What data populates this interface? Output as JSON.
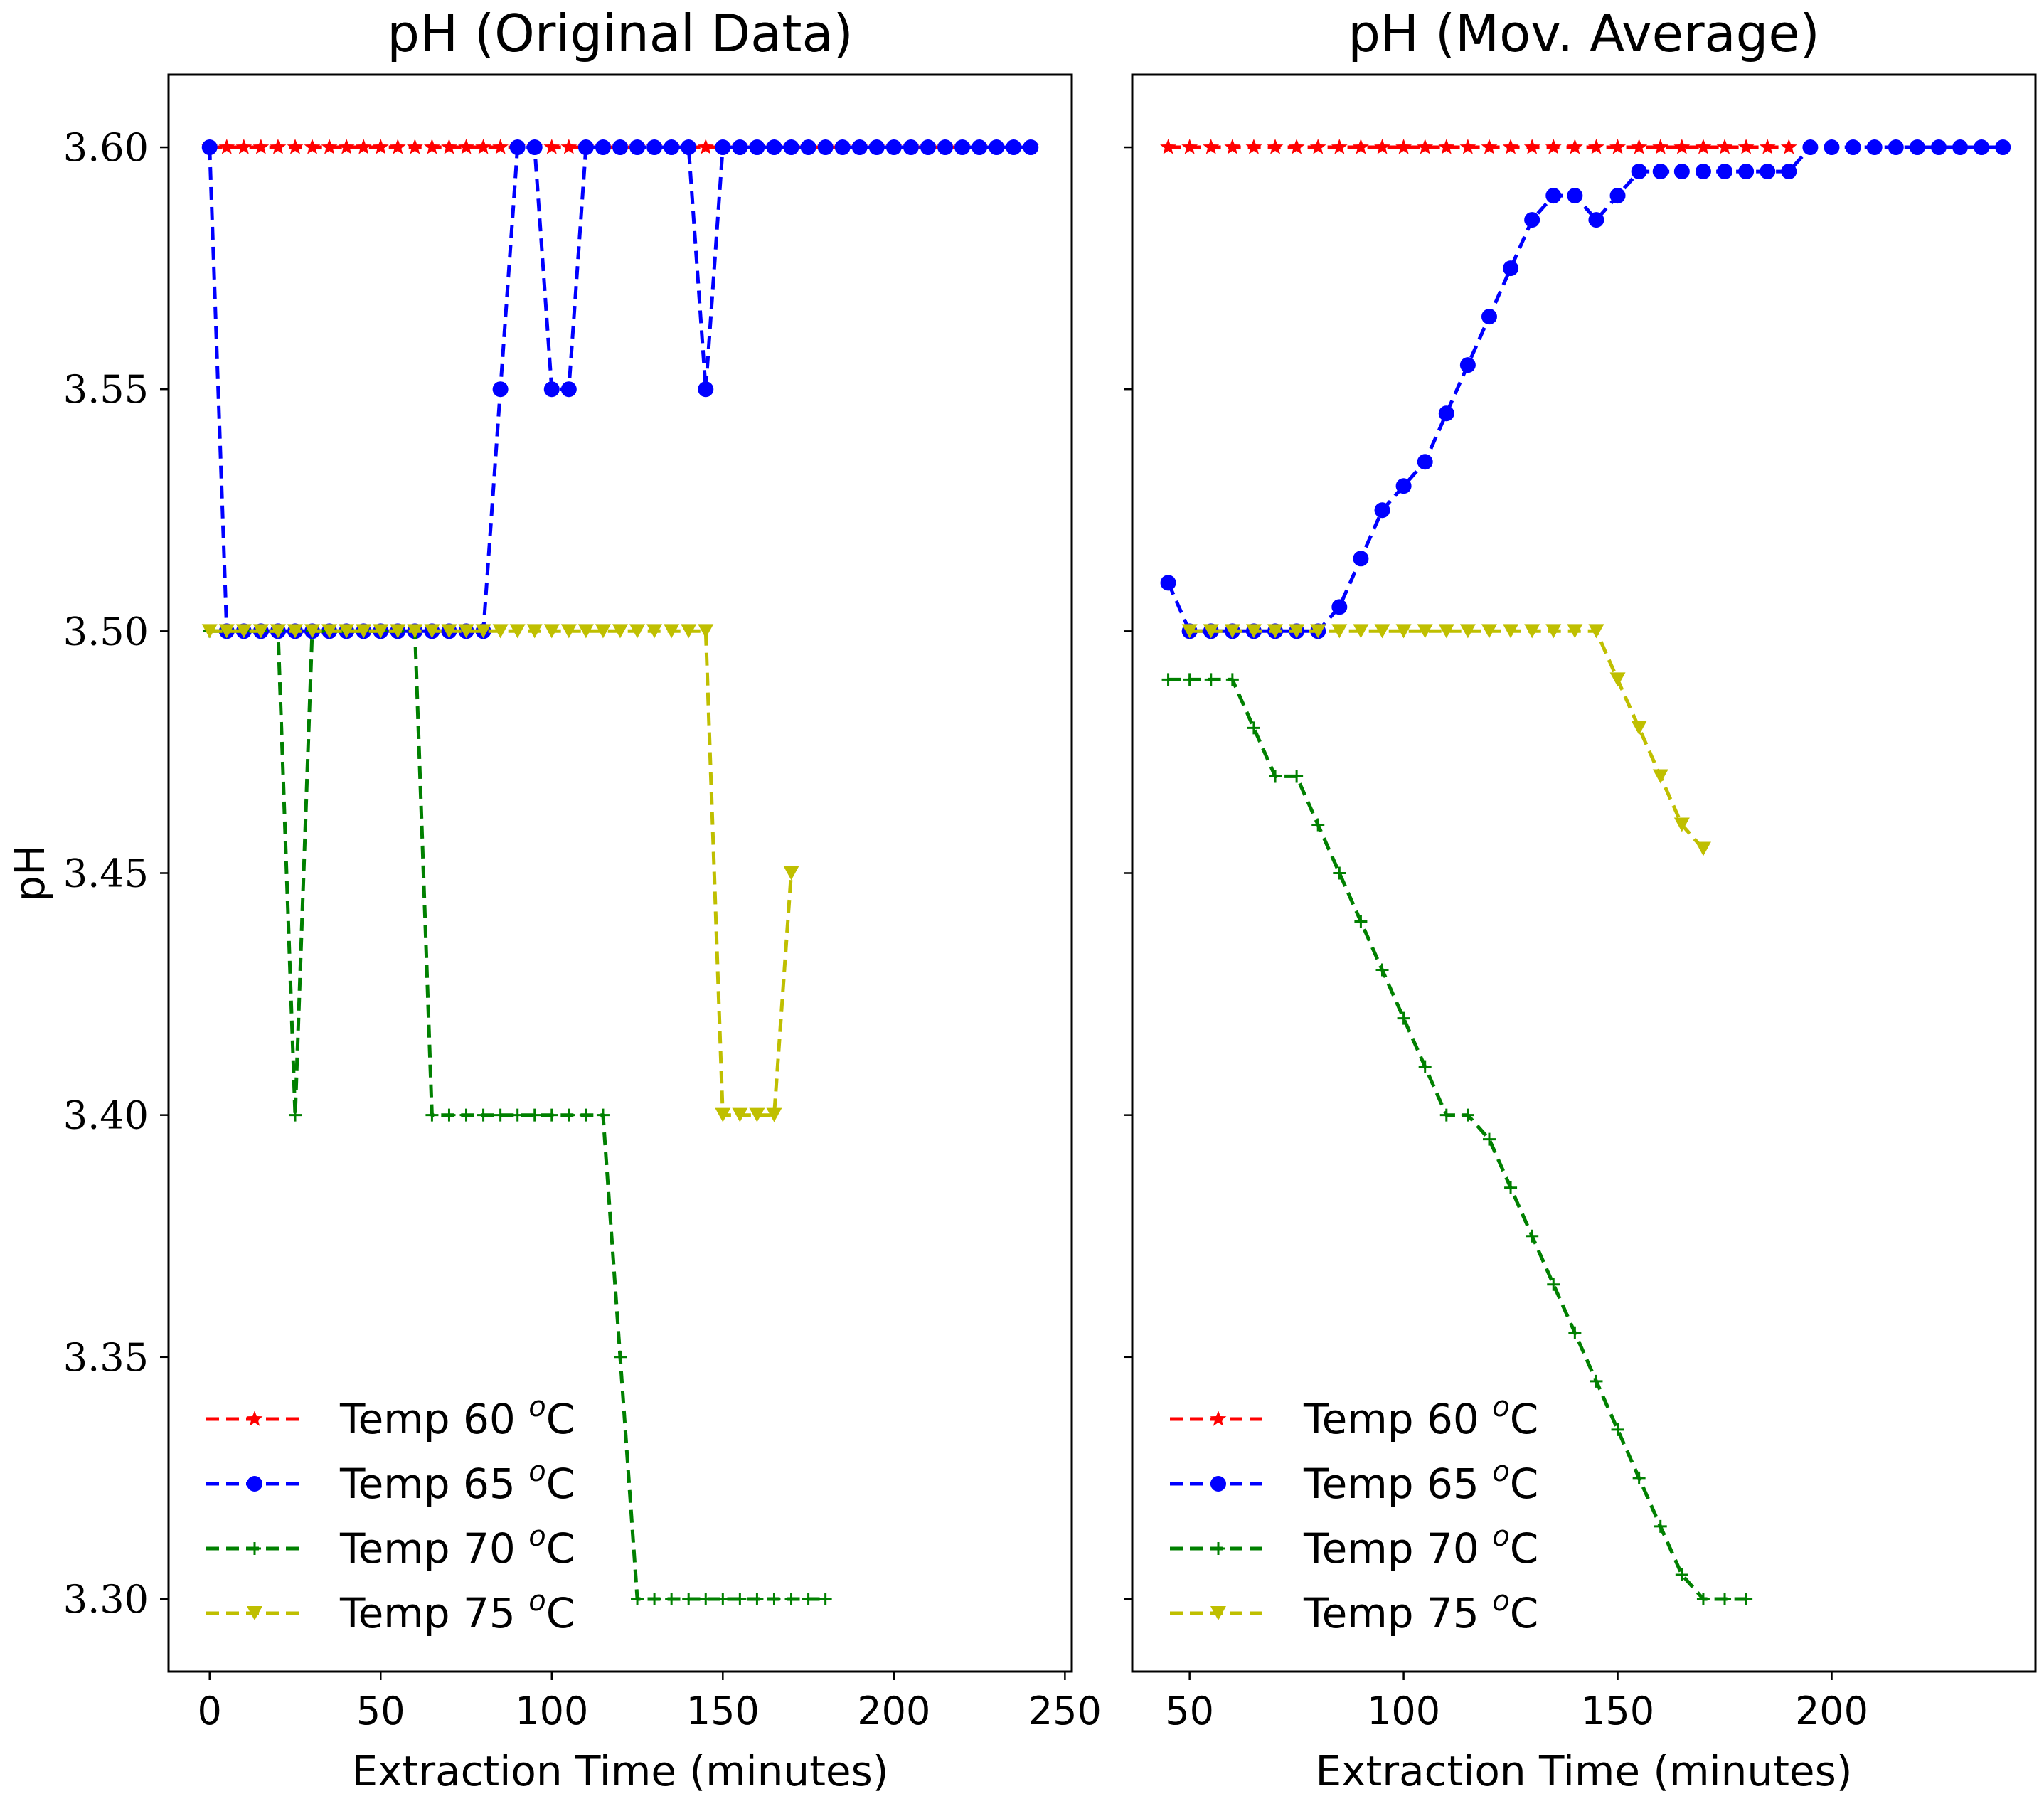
{
  "chart_data": [
    {
      "type": "line",
      "title": "pH (Original Data)",
      "xlabel": "Extraction Time (minutes)",
      "ylabel": "pH",
      "xlim": [
        -12,
        252
      ],
      "ylim": [
        3.285,
        3.615
      ],
      "xticks": [
        0,
        50,
        100,
        150,
        200,
        250
      ],
      "xtick_labels": [
        "0",
        "50",
        "100",
        "150",
        "200",
        "250"
      ],
      "yticks": [
        3.3,
        3.35,
        3.4,
        3.45,
        3.5,
        3.55,
        3.6
      ],
      "ytick_labels": [
        "3.30",
        "3.35",
        "3.40",
        "3.45",
        "3.50",
        "3.55",
        "3.60"
      ],
      "legend_position": "lower-left",
      "series": [
        {
          "name": "Temp 60 °C",
          "label_prefix": "Temp 60 ",
          "label_sup": "o",
          "label_suffix": "C",
          "color": "#ff0000",
          "marker": "star",
          "x": [
            0,
            5,
            10,
            15,
            20,
            25,
            30,
            35,
            40,
            45,
            50,
            55,
            60,
            65,
            70,
            75,
            80,
            85,
            90,
            95,
            100,
            105,
            110,
            115,
            120,
            125,
            130,
            135,
            140,
            145,
            150,
            155,
            160,
            165,
            170,
            175,
            180,
            185,
            190,
            195,
            200,
            205,
            210,
            215,
            220,
            225,
            230,
            235,
            240
          ],
          "y": [
            3.6,
            3.6,
            3.6,
            3.6,
            3.6,
            3.6,
            3.6,
            3.6,
            3.6,
            3.6,
            3.6,
            3.6,
            3.6,
            3.6,
            3.6,
            3.6,
            3.6,
            3.6,
            3.6,
            3.6,
            3.6,
            3.6,
            3.6,
            3.6,
            3.6,
            3.6,
            3.6,
            3.6,
            3.6,
            3.6,
            3.6,
            3.6,
            3.6,
            3.6,
            3.6,
            3.6,
            3.6,
            3.6,
            3.6,
            3.6,
            3.6,
            3.6,
            3.6,
            3.6,
            3.6,
            3.6,
            3.6,
            3.6,
            3.6
          ]
        },
        {
          "name": "Temp 65 °C",
          "label_prefix": "Temp 65 ",
          "label_sup": "o",
          "label_suffix": "C",
          "color": "#0000ff",
          "marker": "circle",
          "x": [
            0,
            5,
            10,
            15,
            20,
            25,
            30,
            35,
            40,
            45,
            50,
            55,
            60,
            65,
            70,
            75,
            80,
            85,
            90,
            95,
            100,
            105,
            110,
            115,
            120,
            125,
            130,
            135,
            140,
            145,
            150,
            155,
            160,
            165,
            170,
            175,
            180,
            185,
            190,
            195,
            200,
            205,
            210,
            215,
            220,
            225,
            230,
            235,
            240
          ],
          "y": [
            3.6,
            3.5,
            3.5,
            3.5,
            3.5,
            3.5,
            3.5,
            3.5,
            3.5,
            3.5,
            3.5,
            3.5,
            3.5,
            3.5,
            3.5,
            3.5,
            3.5,
            3.55,
            3.6,
            3.6,
            3.55,
            3.55,
            3.6,
            3.6,
            3.6,
            3.6,
            3.6,
            3.6,
            3.6,
            3.55,
            3.6,
            3.6,
            3.6,
            3.6,
            3.6,
            3.6,
            3.6,
            3.6,
            3.6,
            3.6,
            3.6,
            3.6,
            3.6,
            3.6,
            3.6,
            3.6,
            3.6,
            3.6,
            3.6
          ]
        },
        {
          "name": "Temp 70 °C",
          "label_prefix": "Temp 70 ",
          "label_sup": "o",
          "label_suffix": "C",
          "color": "#008000",
          "marker": "plus",
          "x": [
            0,
            5,
            10,
            15,
            20,
            25,
            30,
            35,
            40,
            45,
            50,
            55,
            60,
            65,
            70,
            75,
            80,
            85,
            90,
            95,
            100,
            105,
            110,
            115,
            120,
            125,
            130,
            135,
            140,
            145,
            150,
            155,
            160,
            165,
            170,
            175,
            180
          ],
          "y": [
            3.5,
            3.5,
            3.5,
            3.5,
            3.5,
            3.4,
            3.5,
            3.5,
            3.5,
            3.5,
            3.5,
            3.5,
            3.5,
            3.4,
            3.4,
            3.4,
            3.4,
            3.4,
            3.4,
            3.4,
            3.4,
            3.4,
            3.4,
            3.4,
            3.35,
            3.3,
            3.3,
            3.3,
            3.3,
            3.3,
            3.3,
            3.3,
            3.3,
            3.3,
            3.3,
            3.3,
            3.3
          ]
        },
        {
          "name": "Temp 75 °C",
          "label_prefix": "Temp 75 ",
          "label_sup": "o",
          "label_suffix": "C",
          "color": "#bfbf00",
          "marker": "triangle-down",
          "x": [
            0,
            5,
            10,
            15,
            20,
            25,
            30,
            35,
            40,
            45,
            50,
            55,
            60,
            65,
            70,
            75,
            80,
            85,
            90,
            95,
            100,
            105,
            110,
            115,
            120,
            125,
            130,
            135,
            140,
            145,
            150,
            155,
            160,
            165,
            170
          ],
          "y": [
            3.5,
            3.5,
            3.5,
            3.5,
            3.5,
            3.5,
            3.5,
            3.5,
            3.5,
            3.5,
            3.5,
            3.5,
            3.5,
            3.5,
            3.5,
            3.5,
            3.5,
            3.5,
            3.5,
            3.5,
            3.5,
            3.5,
            3.5,
            3.5,
            3.5,
            3.5,
            3.5,
            3.5,
            3.5,
            3.5,
            3.4,
            3.4,
            3.4,
            3.4,
            3.45
          ]
        }
      ]
    },
    {
      "type": "line",
      "title": "pH (Mov. Average)",
      "xlabel": "Extraction Time (minutes)",
      "ylabel": "",
      "xlim": [
        36.6,
        247.6
      ],
      "ylim": [
        3.285,
        3.615
      ],
      "xticks": [
        50,
        100,
        150,
        200
      ],
      "xtick_labels": [
        "50",
        "100",
        "150",
        "200"
      ],
      "yticks": [
        3.3,
        3.35,
        3.4,
        3.45,
        3.5,
        3.55,
        3.6
      ],
      "ytick_labels": [
        "",
        "",
        "",
        "",
        "",
        "",
        ""
      ],
      "legend_position": "lower-left",
      "series": [
        {
          "name": "Temp 60 °C",
          "label_prefix": "Temp 60 ",
          "label_sup": "o",
          "label_suffix": "C",
          "color": "#ff0000",
          "marker": "star",
          "x": [
            45,
            50,
            55,
            60,
            65,
            70,
            75,
            80,
            85,
            90,
            95,
            100,
            105,
            110,
            115,
            120,
            125,
            130,
            135,
            140,
            145,
            150,
            155,
            160,
            165,
            170,
            175,
            180,
            185,
            190
          ],
          "y": [
            3.6,
            3.6,
            3.6,
            3.6,
            3.6,
            3.6,
            3.6,
            3.6,
            3.6,
            3.6,
            3.6,
            3.6,
            3.6,
            3.6,
            3.6,
            3.6,
            3.6,
            3.6,
            3.6,
            3.6,
            3.6,
            3.6,
            3.6,
            3.6,
            3.6,
            3.6,
            3.6,
            3.6,
            3.6,
            3.6
          ]
        },
        {
          "name": "Temp 65 °C",
          "label_prefix": "Temp 65 ",
          "label_sup": "o",
          "label_suffix": "C",
          "color": "#0000ff",
          "marker": "circle",
          "x": [
            45,
            50,
            55,
            60,
            65,
            70,
            75,
            80,
            85,
            90,
            95,
            100,
            105,
            110,
            115,
            120,
            125,
            130,
            135,
            140,
            145,
            150,
            155,
            160,
            165,
            170,
            175,
            180,
            185,
            190,
            195,
            200,
            205,
            210,
            215,
            220,
            225,
            230,
            235,
            240
          ],
          "y": [
            3.51,
            3.5,
            3.5,
            3.5,
            3.5,
            3.5,
            3.5,
            3.5,
            3.505,
            3.515,
            3.525,
            3.53,
            3.535,
            3.545,
            3.555,
            3.565,
            3.575,
            3.585,
            3.59,
            3.59,
            3.585,
            3.59,
            3.595,
            3.595,
            3.595,
            3.595,
            3.595,
            3.595,
            3.595,
            3.595,
            3.6,
            3.6,
            3.6,
            3.6,
            3.6,
            3.6,
            3.6,
            3.6,
            3.6,
            3.6
          ]
        },
        {
          "name": "Temp 70 °C",
          "label_prefix": "Temp 70 ",
          "label_sup": "o",
          "label_suffix": "C",
          "color": "#008000",
          "marker": "plus",
          "x": [
            45,
            50,
            55,
            60,
            65,
            70,
            75,
            80,
            85,
            90,
            95,
            100,
            105,
            110,
            115,
            120,
            125,
            130,
            135,
            140,
            145,
            150,
            155,
            160,
            165,
            170,
            175,
            180
          ],
          "y": [
            3.49,
            3.49,
            3.49,
            3.49,
            3.48,
            3.47,
            3.47,
            3.46,
            3.45,
            3.44,
            3.43,
            3.42,
            3.41,
            3.4,
            3.4,
            3.395,
            3.385,
            3.375,
            3.365,
            3.355,
            3.345,
            3.335,
            3.325,
            3.315,
            3.305,
            3.3,
            3.3,
            3.3
          ]
        },
        {
          "name": "Temp 75 °C",
          "label_prefix": "Temp 75 ",
          "label_sup": "o",
          "label_suffix": "C",
          "color": "#bfbf00",
          "marker": "triangle-down",
          "x": [
            50,
            55,
            60,
            65,
            70,
            75,
            80,
            85,
            90,
            95,
            100,
            105,
            110,
            115,
            120,
            125,
            130,
            135,
            140,
            145,
            150,
            155,
            160,
            165,
            170
          ],
          "y": [
            3.5,
            3.5,
            3.5,
            3.5,
            3.5,
            3.5,
            3.5,
            3.5,
            3.5,
            3.5,
            3.5,
            3.5,
            3.5,
            3.5,
            3.5,
            3.5,
            3.5,
            3.5,
            3.5,
            3.5,
            3.49,
            3.48,
            3.47,
            3.46,
            3.455
          ]
        }
      ]
    }
  ]
}
